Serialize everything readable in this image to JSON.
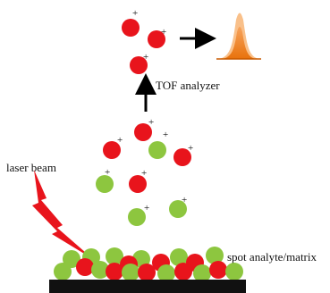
{
  "labels": {
    "tof": "TOF analyzer",
    "laser": "laser beam",
    "spot": "spot analyte/matrix",
    "charge": "+"
  }
}
